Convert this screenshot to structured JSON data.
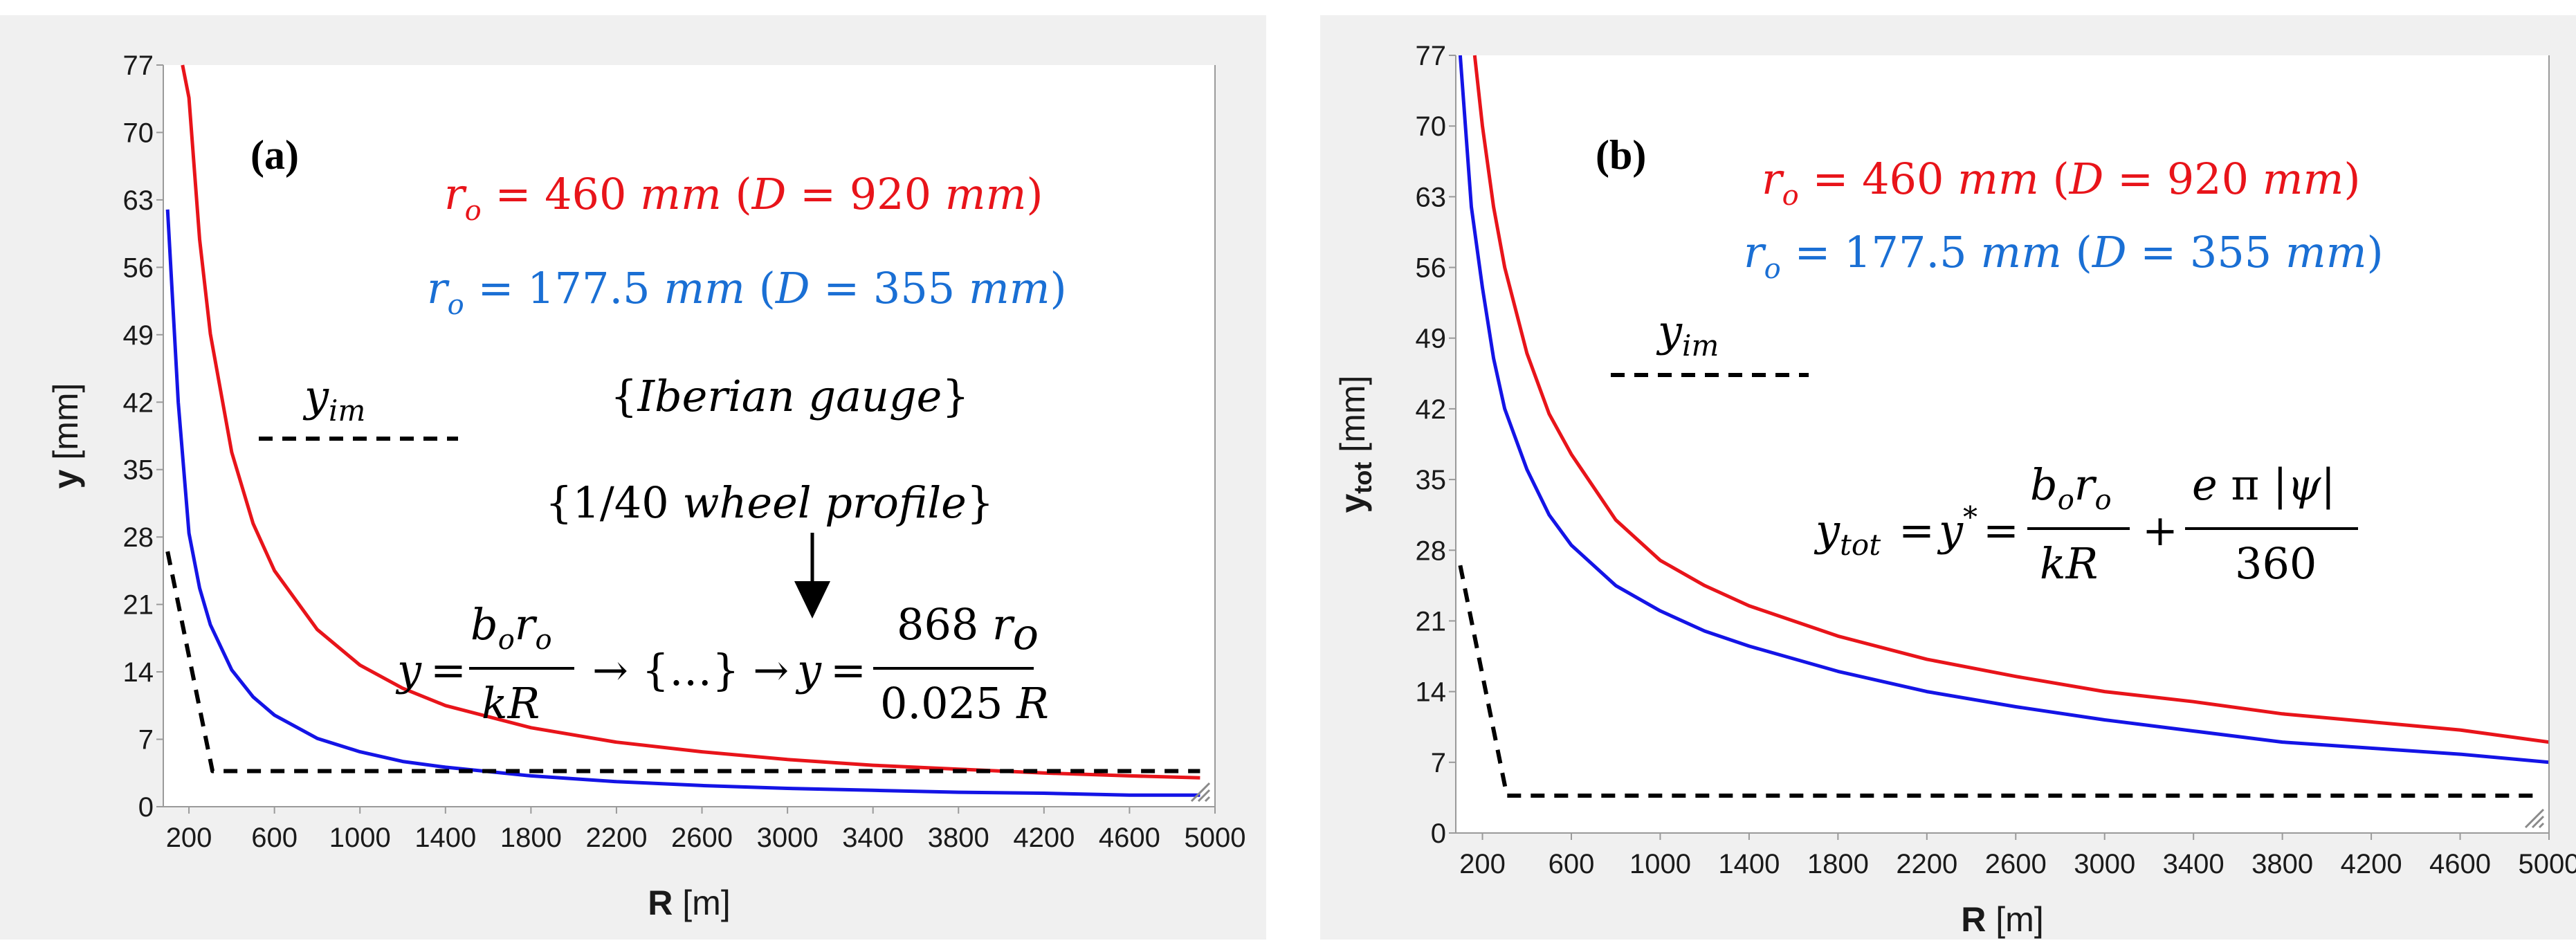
{
  "chart_data": [
    {
      "type": "line",
      "panel_label": "(a)",
      "xlabel": "R [m]",
      "ylabel": "y [mm]",
      "xlim": [
        80,
        5000
      ],
      "ylim": [
        0,
        77
      ],
      "xticks": [
        200,
        600,
        1000,
        1400,
        1800,
        2200,
        2600,
        3000,
        3400,
        3800,
        4200,
        4600,
        5000
      ],
      "yticks": [
        0,
        7,
        14,
        21,
        28,
        35,
        42,
        49,
        56,
        63,
        70,
        77
      ],
      "grid": false,
      "series": [
        {
          "name": "r_o = 460 mm (D = 920 mm)",
          "color": "#e8141a",
          "x": [
            170,
            200,
            250,
            300,
            400,
            500,
            600,
            800,
            1000,
            1200,
            1400,
            1800,
            2200,
            2600,
            3000,
            3400,
            3800,
            4200,
            4600,
            4930
          ],
          "y": [
            77,
            73.6,
            58.9,
            49.1,
            36.8,
            29.4,
            24.5,
            18.4,
            14.7,
            12.3,
            10.5,
            8.2,
            6.7,
            5.7,
            4.9,
            4.3,
            3.9,
            3.5,
            3.2,
            3.0
          ]
        },
        {
          "name": "r_o = 177.5 mm (D = 355 mm)",
          "color": "#1414e6",
          "x": [
            100,
            150,
            200,
            250,
            300,
            400,
            500,
            600,
            800,
            1000,
            1200,
            1400,
            1800,
            2200,
            2600,
            3000,
            3400,
            3800,
            4200,
            4600,
            4930
          ],
          "y": [
            62,
            42,
            28.4,
            22.7,
            18.9,
            14.2,
            11.4,
            9.5,
            7.1,
            5.7,
            4.7,
            4.1,
            3.2,
            2.6,
            2.2,
            1.9,
            1.7,
            1.5,
            1.4,
            1.2,
            1.2
          ]
        },
        {
          "name": "y_im",
          "color": "#000000",
          "dashed": true,
          "x": [
            100,
            310,
            4930
          ],
          "y": [
            26.5,
            3.7,
            3.7
          ]
        }
      ],
      "annotations": [
        "r_o = 460 mm (D = 920 mm)",
        "r_o = 177.5 mm (D = 355 mm)",
        "y_im",
        "{Iberian gauge}",
        "{1/40 wheel profile}",
        "y = b_o r_o / kR → {…} → y = 868 r_o / 0.025 R"
      ]
    },
    {
      "type": "line",
      "panel_label": "(b)",
      "xlabel": "R [m]",
      "ylabel": "y_tot [mm]",
      "xlim": [
        80,
        5000
      ],
      "ylim": [
        0,
        77
      ],
      "xticks": [
        200,
        600,
        1000,
        1400,
        1800,
        2200,
        2600,
        3000,
        3400,
        3800,
        4200,
        4600,
        5000
      ],
      "yticks": [
        0,
        7,
        14,
        21,
        28,
        35,
        42,
        49,
        56,
        63,
        70,
        77
      ],
      "grid": false,
      "series": [
        {
          "name": "r_o = 460 mm (D = 920 mm)",
          "color": "#e8141a",
          "x": [
            165,
            200,
            250,
            300,
            400,
            500,
            600,
            800,
            1000,
            1200,
            1400,
            1800,
            2200,
            2600,
            3000,
            3400,
            3800,
            4200,
            4600,
            5000
          ],
          "y": [
            77,
            70,
            62,
            56,
            47.5,
            41.5,
            37.5,
            31,
            27,
            24.5,
            22.5,
            19.5,
            17.2,
            15.5,
            14,
            13,
            11.8,
            11,
            10.2,
            9
          ]
        },
        {
          "name": "r_o = 177.5 mm (D = 355 mm)",
          "color": "#1414e6",
          "x": [
            100,
            150,
            200,
            250,
            300,
            400,
            500,
            600,
            800,
            1000,
            1200,
            1400,
            1800,
            2200,
            2600,
            3000,
            3400,
            3800,
            4200,
            4600,
            5000
          ],
          "y": [
            77,
            62,
            54,
            47,
            42,
            36,
            31.5,
            28.5,
            24.5,
            22,
            20,
            18.5,
            16,
            14,
            12.5,
            11.2,
            10.1,
            9,
            8.4,
            7.8,
            7
          ]
        },
        {
          "name": "y_im",
          "color": "#000000",
          "dashed": true,
          "x": [
            100,
            310,
            4930
          ],
          "y": [
            26.5,
            3.7,
            3.7
          ]
        }
      ],
      "annotations": [
        "r_o = 460 mm (D = 920 mm)",
        "r_o = 177.5 mm (D = 355 mm)",
        "y_im",
        "y_tot = y* = b_o r_o / kR + e π |ψ| / 360"
      ]
    }
  ]
}
